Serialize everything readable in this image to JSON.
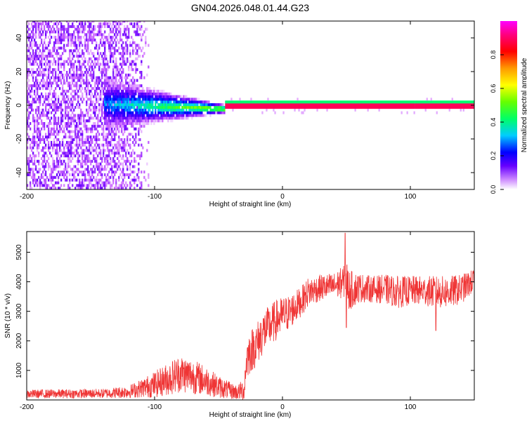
{
  "figure": {
    "title": "GN04.2026.048.01.44.G23"
  },
  "chart_data": [
    {
      "type": "heatmap",
      "title": "GN04.2026.048.01.44.G23",
      "xlabel": "Height of straight line (km)",
      "ylabel": "Frequency (Hz)",
      "xlim": [
        -200,
        150
      ],
      "ylim": [
        -50,
        50
      ],
      "xticks": [
        -200,
        -100,
        0,
        100
      ],
      "yticks": [
        -40,
        -20,
        0,
        20,
        40
      ],
      "colorbar": {
        "label": "Normalized spectral amplitude",
        "range": [
          0,
          1
        ],
        "ticks": [
          0.0,
          0.2,
          0.4,
          0.6,
          0.8
        ],
        "colormap": [
          "#ffffff",
          "#cc66ff",
          "#6600ff",
          "#0000ff",
          "#00ccff",
          "#00ff66",
          "#66ff00",
          "#ffff00",
          "#ff9900",
          "#ff0000",
          "#ff0080",
          "#ff00ff"
        ]
      },
      "features": {
        "carrier_frequency_hz": 0,
        "carrier_onset_km": -45,
        "noise_region_km": [
          -200,
          -110
        ],
        "spread_region_km": [
          -140,
          -45
        ],
        "spread_halfwidth_hz_at_start": 12,
        "spread_halfwidth_hz_at_end": 2
      }
    },
    {
      "type": "line",
      "xlabel": "Height of straight line (km)",
      "ylabel": "SNR (10 * v/v)",
      "xlim": [
        -200,
        150
      ],
      "ylim": [
        0,
        5700
      ],
      "xticks": [
        -200,
        -100,
        0,
        100
      ],
      "yticks": [
        1000,
        2000,
        3000,
        4000,
        5000
      ],
      "color": "#ef3535",
      "envelope": {
        "x": [
          -200,
          -140,
          -120,
          -110,
          -100,
          -90,
          -80,
          -70,
          -60,
          -50,
          -40,
          -35,
          -30,
          -28,
          -25,
          -20,
          -15,
          -10,
          -5,
          0,
          5,
          10,
          15,
          20,
          30,
          40,
          48,
          50,
          52,
          60,
          70,
          80,
          90,
          100,
          110,
          120,
          130,
          140,
          150
        ],
        "mean": [
          200,
          220,
          280,
          400,
          520,
          700,
          900,
          800,
          650,
          450,
          300,
          260,
          350,
          1400,
          1650,
          1900,
          2300,
          2500,
          2700,
          2850,
          2950,
          3150,
          3350,
          3650,
          3800,
          3850,
          4000,
          4150,
          3700,
          3800,
          3750,
          3750,
          3650,
          3700,
          3700,
          3650,
          3650,
          3750,
          4050
        ],
        "amplitude": [
          150,
          160,
          220,
          320,
          450,
          550,
          650,
          600,
          500,
          380,
          280,
          260,
          400,
          700,
          750,
          750,
          750,
          700,
          700,
          650,
          600,
          550,
          500,
          500,
          450,
          450,
          550,
          600,
          700,
          500,
          450,
          500,
          550,
          500,
          500,
          550,
          550,
          500,
          400
        ]
      },
      "notable_points": [
        {
          "x": 49,
          "y": 5650
        },
        {
          "x": 50,
          "y": 2450
        },
        {
          "x": 120,
          "y": 2350
        }
      ]
    }
  ]
}
